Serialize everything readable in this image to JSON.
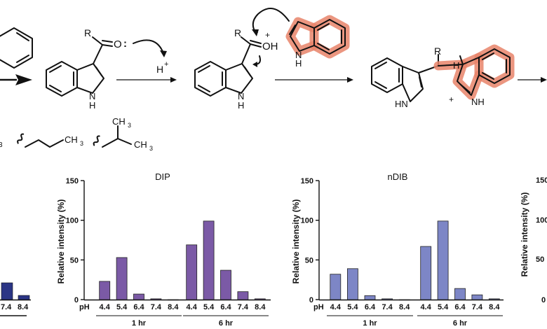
{
  "scheme": {
    "labels": {
      "ketone_R": "R",
      "ketone_O": "O",
      "colon": ":",
      "proton": "H",
      "plus": "+",
      "nh": "N",
      "nh_h": "H",
      "oh": "OH",
      "prot_R": "R",
      "dimer_R": "R",
      "dimer_H": "H",
      "hn": "HN",
      "ring_nh": "NH",
      "ch3_a": "CH",
      "ch3_b": "CH",
      "ch3_c": "CH",
      "sub3": "3",
      "cut_3": "3"
    }
  },
  "colors": {
    "highlight": "#e8846a",
    "dip_bar": "#7b5aa6",
    "ndib_bar": "#7d86c6",
    "left_bar": "#2b3585"
  },
  "chart_data": [
    {
      "type": "bar",
      "title": "DIP",
      "ylabel": "Relative intensity (%)",
      "ylim": [
        0,
        150
      ],
      "yticks": [
        "0",
        "50",
        "100",
        "150"
      ],
      "x_prefix": "pH",
      "categories": [
        "4.4",
        "5.4",
        "6.4",
        "7.4",
        "8.4",
        "4.4",
        "5.4",
        "6.4",
        "7.4",
        "8.4"
      ],
      "groups": [
        "1 hr",
        "6 hr"
      ],
      "series": [
        {
          "values": [
            23,
            53,
            7,
            1,
            0,
            69,
            99,
            37,
            10,
            1
          ]
        }
      ]
    },
    {
      "type": "bar",
      "title": "nDIB",
      "ylabel": "Relative intensity (%)",
      "ylim": [
        0,
        150
      ],
      "yticks": [
        "0",
        "50",
        "100",
        "150"
      ],
      "x_prefix": "pH",
      "categories": [
        "4.4",
        "5.4",
        "6.4",
        "7.4",
        "8.4",
        "4.4",
        "5.4",
        "6.4",
        "7.4",
        "8.4"
      ],
      "groups": [
        "1 hr",
        "6 hr"
      ],
      "series": [
        {
          "values": [
            32,
            39,
            5,
            1,
            0,
            67,
            99,
            14,
            6,
            1
          ]
        }
      ]
    }
  ],
  "left_partial": {
    "ticks": [
      "7.4",
      "8.4"
    ],
    "values": [
      22,
      6
    ]
  },
  "right_partial": {
    "ticks": [
      "150",
      "100",
      "50",
      "0"
    ],
    "ylabel": "Relative intensity (%)"
  }
}
